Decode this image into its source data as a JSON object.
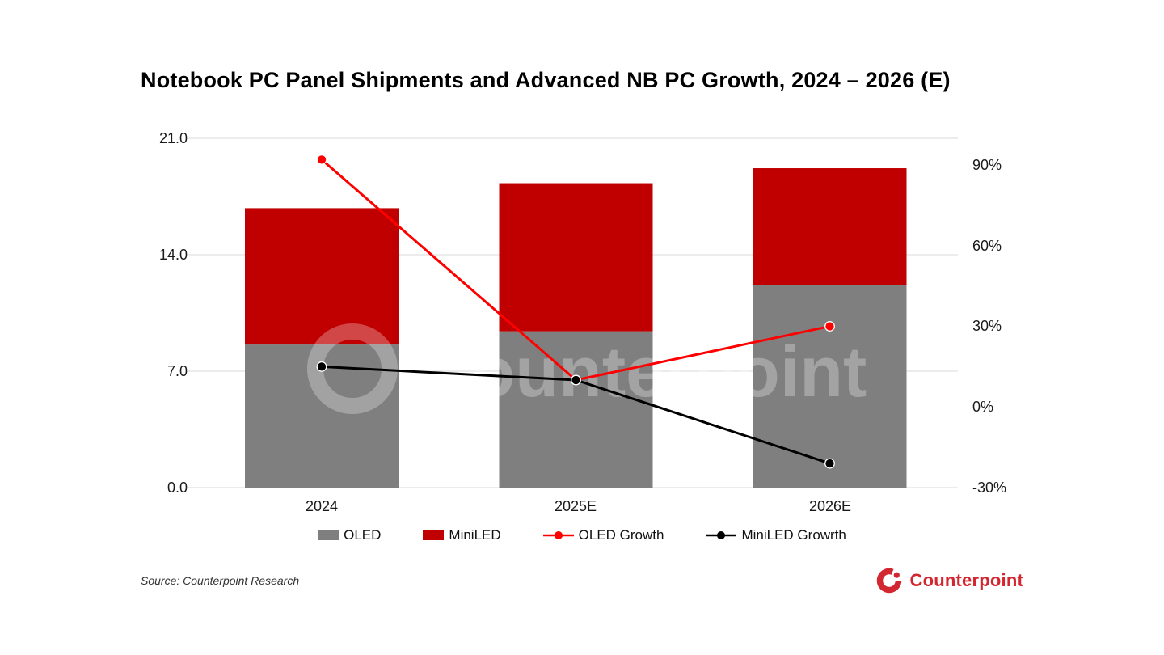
{
  "title": "Notebook PC Panel Shipments and Advanced NB PC Growth, 2024 – 2026 (E)",
  "source": "Source: Counterpoint Research",
  "watermark": "Counterpoint",
  "brand": {
    "name": "Counterpoint",
    "color": "#D22630"
  },
  "chart_data": {
    "type": "combo (stacked bar + line)",
    "categories": [
      "2024",
      "2025E",
      "2026E"
    ],
    "bar_series": [
      {
        "name": "OLED",
        "color": "#7F7F7F",
        "axis": "left",
        "values": [
          8.6,
          9.4,
          12.2
        ]
      },
      {
        "name": "MiniLED",
        "color": "#C00000",
        "axis": "left",
        "values": [
          8.2,
          8.9,
          7.0
        ]
      }
    ],
    "line_series": [
      {
        "name": "OLED Growth",
        "color": "#FF0000",
        "axis": "right",
        "values": [
          92,
          10,
          30
        ]
      },
      {
        "name": "MiniLED Growrth",
        "color": "#000000",
        "axis": "right",
        "values": [
          15,
          10,
          -21
        ]
      }
    ],
    "left_axis": {
      "ticks": [
        "21.0",
        "14.0",
        "7.0",
        "0.0"
      ],
      "min": 0,
      "max": 21
    },
    "right_axis": {
      "ticks": [
        "90%",
        "60%",
        "30%",
        "0%",
        "-30%"
      ],
      "min": -30,
      "max": 90
    },
    "grid": "horizontal light-gray lines at left-axis ticks",
    "gridline_color": "#D9D9D9",
    "legend_position": "bottom"
  }
}
